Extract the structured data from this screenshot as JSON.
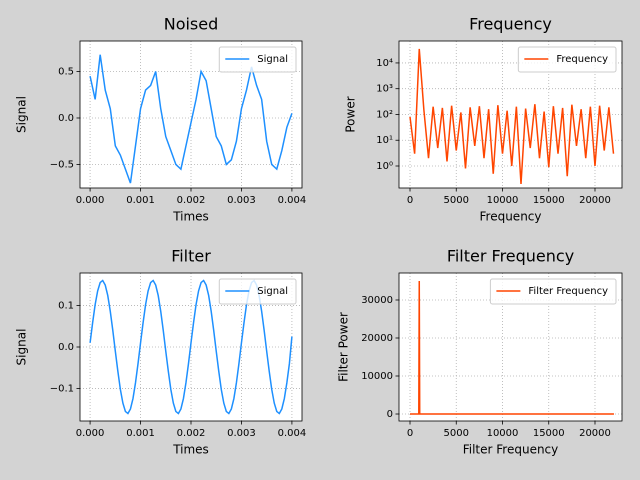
{
  "chart_data": [
    {
      "type": "line",
      "title": "Noised",
      "xlabel": "Times",
      "ylabel": "Signal",
      "x": [
        0,
        0.0001,
        0.0002,
        0.0003,
        0.0004,
        0.0005,
        0.0006,
        0.0007,
        0.0008,
        0.0009,
        0.001,
        0.0011,
        0.0012,
        0.0013,
        0.0014,
        0.0015,
        0.0016,
        0.0017,
        0.0018,
        0.0019,
        0.002,
        0.0021,
        0.0022,
        0.0023,
        0.0024,
        0.0025,
        0.0026,
        0.0027,
        0.0028,
        0.0029,
        0.003,
        0.0031,
        0.0032,
        0.0033,
        0.0034,
        0.0035,
        0.0036,
        0.0037,
        0.0038,
        0.0039,
        0.004
      ],
      "series": [
        {
          "name": "Signal",
          "color": "#1e90ff",
          "values": [
            0.45,
            0.2,
            0.68,
            0.3,
            0.1,
            -0.3,
            -0.4,
            -0.55,
            -0.7,
            -0.3,
            0.1,
            0.3,
            0.35,
            0.5,
            0.1,
            -0.2,
            -0.35,
            -0.5,
            -0.55,
            -0.3,
            -0.05,
            0.2,
            0.5,
            0.4,
            0.1,
            -0.2,
            -0.3,
            -0.5,
            -0.45,
            -0.25,
            0.1,
            0.3,
            0.55,
            0.35,
            0.2,
            -0.25,
            -0.5,
            -0.55,
            -0.35,
            -0.1,
            0.05
          ]
        }
      ],
      "xlim": [
        -0.0002,
        0.0042
      ],
      "ylim": [
        -0.753,
        0.828
      ],
      "xticks": [
        {
          "value": 0,
          "label": "0.000"
        },
        {
          "value": 0.001,
          "label": "0.001"
        },
        {
          "value": 0.002,
          "label": "0.002"
        },
        {
          "value": 0.003,
          "label": "0.003"
        },
        {
          "value": 0.004,
          "label": "0.004"
        }
      ],
      "yticks": [
        {
          "value": -0.5,
          "label": "−0.5"
        },
        {
          "value": 0,
          "label": "0.0"
        },
        {
          "value": 0.5,
          "label": "0.5"
        }
      ],
      "grid": true,
      "legend": "upper right"
    },
    {
      "type": "line",
      "title": "Frequency",
      "xlabel": "Frequency",
      "ylabel": "Power",
      "yscale": "log",
      "x": [
        0,
        500,
        1000,
        1500,
        2000,
        2500,
        3000,
        3500,
        4000,
        4500,
        5000,
        5500,
        6000,
        6500,
        7000,
        7500,
        8000,
        8500,
        9000,
        9500,
        10000,
        10500,
        11000,
        11500,
        12000,
        12500,
        13000,
        13500,
        14000,
        14500,
        15000,
        15500,
        16000,
        16500,
        17000,
        17500,
        18000,
        18500,
        19000,
        19500,
        20000,
        20500,
        21000,
        21500,
        22000
      ],
      "series": [
        {
          "name": "Frequency",
          "color": "#ff4500",
          "values": [
            80,
            3,
            35000,
            150,
            2,
            200,
            5,
            180,
            1.5,
            220,
            4,
            120,
            0.8,
            190,
            6,
            210,
            2,
            160,
            0.5,
            230,
            3,
            140,
            1,
            200,
            0.2,
            170,
            5,
            250,
            2,
            130,
            0.9,
            210,
            3,
            180,
            0.4,
            240,
            6,
            160,
            2,
            200,
            1,
            220,
            4,
            190,
            3
          ]
        }
      ],
      "xlim": [
        -1190,
        22920
      ],
      "ylim": [
        0.14,
        71000
      ],
      "xticks": [
        0,
        5000,
        10000,
        15000,
        20000
      ],
      "yticks": [
        {
          "value": 1,
          "label": "10⁰"
        },
        {
          "value": 10,
          "label": "10¹"
        },
        {
          "value": 100,
          "label": "10²"
        },
        {
          "value": 1000,
          "label": "10³"
        },
        {
          "value": 10000,
          "label": "10⁴"
        }
      ],
      "grid": true,
      "legend": "upper right"
    },
    {
      "type": "line",
      "title": "Filter",
      "xlabel": "Times",
      "ylabel": "Signal",
      "x": [
        0,
        5e-05,
        0.0001,
        0.00015,
        0.0002,
        0.00025,
        0.0003,
        0.00035,
        0.0004,
        0.00045,
        0.0005,
        0.00055,
        0.0006,
        0.00065,
        0.0007,
        0.00075,
        0.0008,
        0.00085,
        0.0009,
        0.00095,
        0.001,
        0.00105,
        0.0011,
        0.00115,
        0.0012,
        0.00125,
        0.0013,
        0.00135,
        0.0014,
        0.00145,
        0.0015,
        0.00155,
        0.0016,
        0.00165,
        0.0017,
        0.00175,
        0.0018,
        0.00185,
        0.0019,
        0.00195,
        0.002,
        0.00205,
        0.0021,
        0.00215,
        0.0022,
        0.00225,
        0.0023,
        0.00235,
        0.0024,
        0.00245,
        0.0025,
        0.00255,
        0.0026,
        0.00265,
        0.0027,
        0.00275,
        0.0028,
        0.00285,
        0.0029,
        0.00295,
        0.003,
        0.00305,
        0.0031,
        0.00315,
        0.0032,
        0.00325,
        0.0033,
        0.00335,
        0.0034,
        0.00345,
        0.0035,
        0.00355,
        0.0036,
        0.00365,
        0.0037,
        0.00375,
        0.0038,
        0.00385,
        0.0039,
        0.00395,
        0.004
      ],
      "series": [
        {
          "name": "Signal",
          "color": "#1e90ff",
          "values": [
            0.01,
            0.058,
            0.102,
            0.135,
            0.155,
            0.16,
            0.149,
            0.124,
            0.086,
            0.04,
            -0.01,
            -0.058,
            -0.102,
            -0.135,
            -0.155,
            -0.16,
            -0.149,
            -0.124,
            -0.086,
            -0.04,
            0.01,
            0.058,
            0.102,
            0.135,
            0.155,
            0.16,
            0.149,
            0.124,
            0.086,
            0.04,
            -0.01,
            -0.058,
            -0.102,
            -0.135,
            -0.155,
            -0.16,
            -0.149,
            -0.124,
            -0.086,
            -0.04,
            0.01,
            0.058,
            0.102,
            0.135,
            0.155,
            0.16,
            0.149,
            0.124,
            0.086,
            0.04,
            -0.01,
            -0.058,
            -0.102,
            -0.135,
            -0.155,
            -0.16,
            -0.149,
            -0.124,
            -0.086,
            -0.04,
            0.01,
            0.058,
            0.102,
            0.135,
            0.155,
            0.16,
            0.149,
            0.124,
            0.086,
            0.04,
            -0.01,
            -0.058,
            -0.102,
            -0.135,
            -0.155,
            -0.16,
            -0.149,
            -0.124,
            -0.086,
            -0.04,
            0.025
          ]
        }
      ],
      "xlim": [
        -0.0002,
        0.0042
      ],
      "ylim": [
        -0.178,
        0.178
      ],
      "xticks": [
        {
          "value": 0,
          "label": "0.000"
        },
        {
          "value": 0.001,
          "label": "0.001"
        },
        {
          "value": 0.002,
          "label": "0.002"
        },
        {
          "value": 0.003,
          "label": "0.003"
        },
        {
          "value": 0.004,
          "label": "0.004"
        }
      ],
      "yticks": [
        {
          "value": -0.1,
          "label": "−0.1"
        },
        {
          "value": 0,
          "label": "0.0"
        },
        {
          "value": 0.1,
          "label": "0.1"
        }
      ],
      "grid": true,
      "legend": "upper right"
    },
    {
      "type": "line",
      "title": "Filter Frequency",
      "xlabel": "Filter Frequency",
      "ylabel": "Filter Power",
      "x": [
        0,
        950,
        1000,
        1050,
        22050
      ],
      "series": [
        {
          "name": "Filter Frequency",
          "color": "#ff4500",
          "values": [
            0,
            0,
            35000,
            0,
            0
          ]
        }
      ],
      "xlim": [
        -1190,
        22920
      ],
      "ylim": [
        -1840,
        37100
      ],
      "xticks": [
        0,
        5000,
        10000,
        15000,
        20000
      ],
      "yticks": [
        0,
        10000,
        20000,
        30000
      ],
      "grid": true,
      "legend": "upper right"
    }
  ]
}
